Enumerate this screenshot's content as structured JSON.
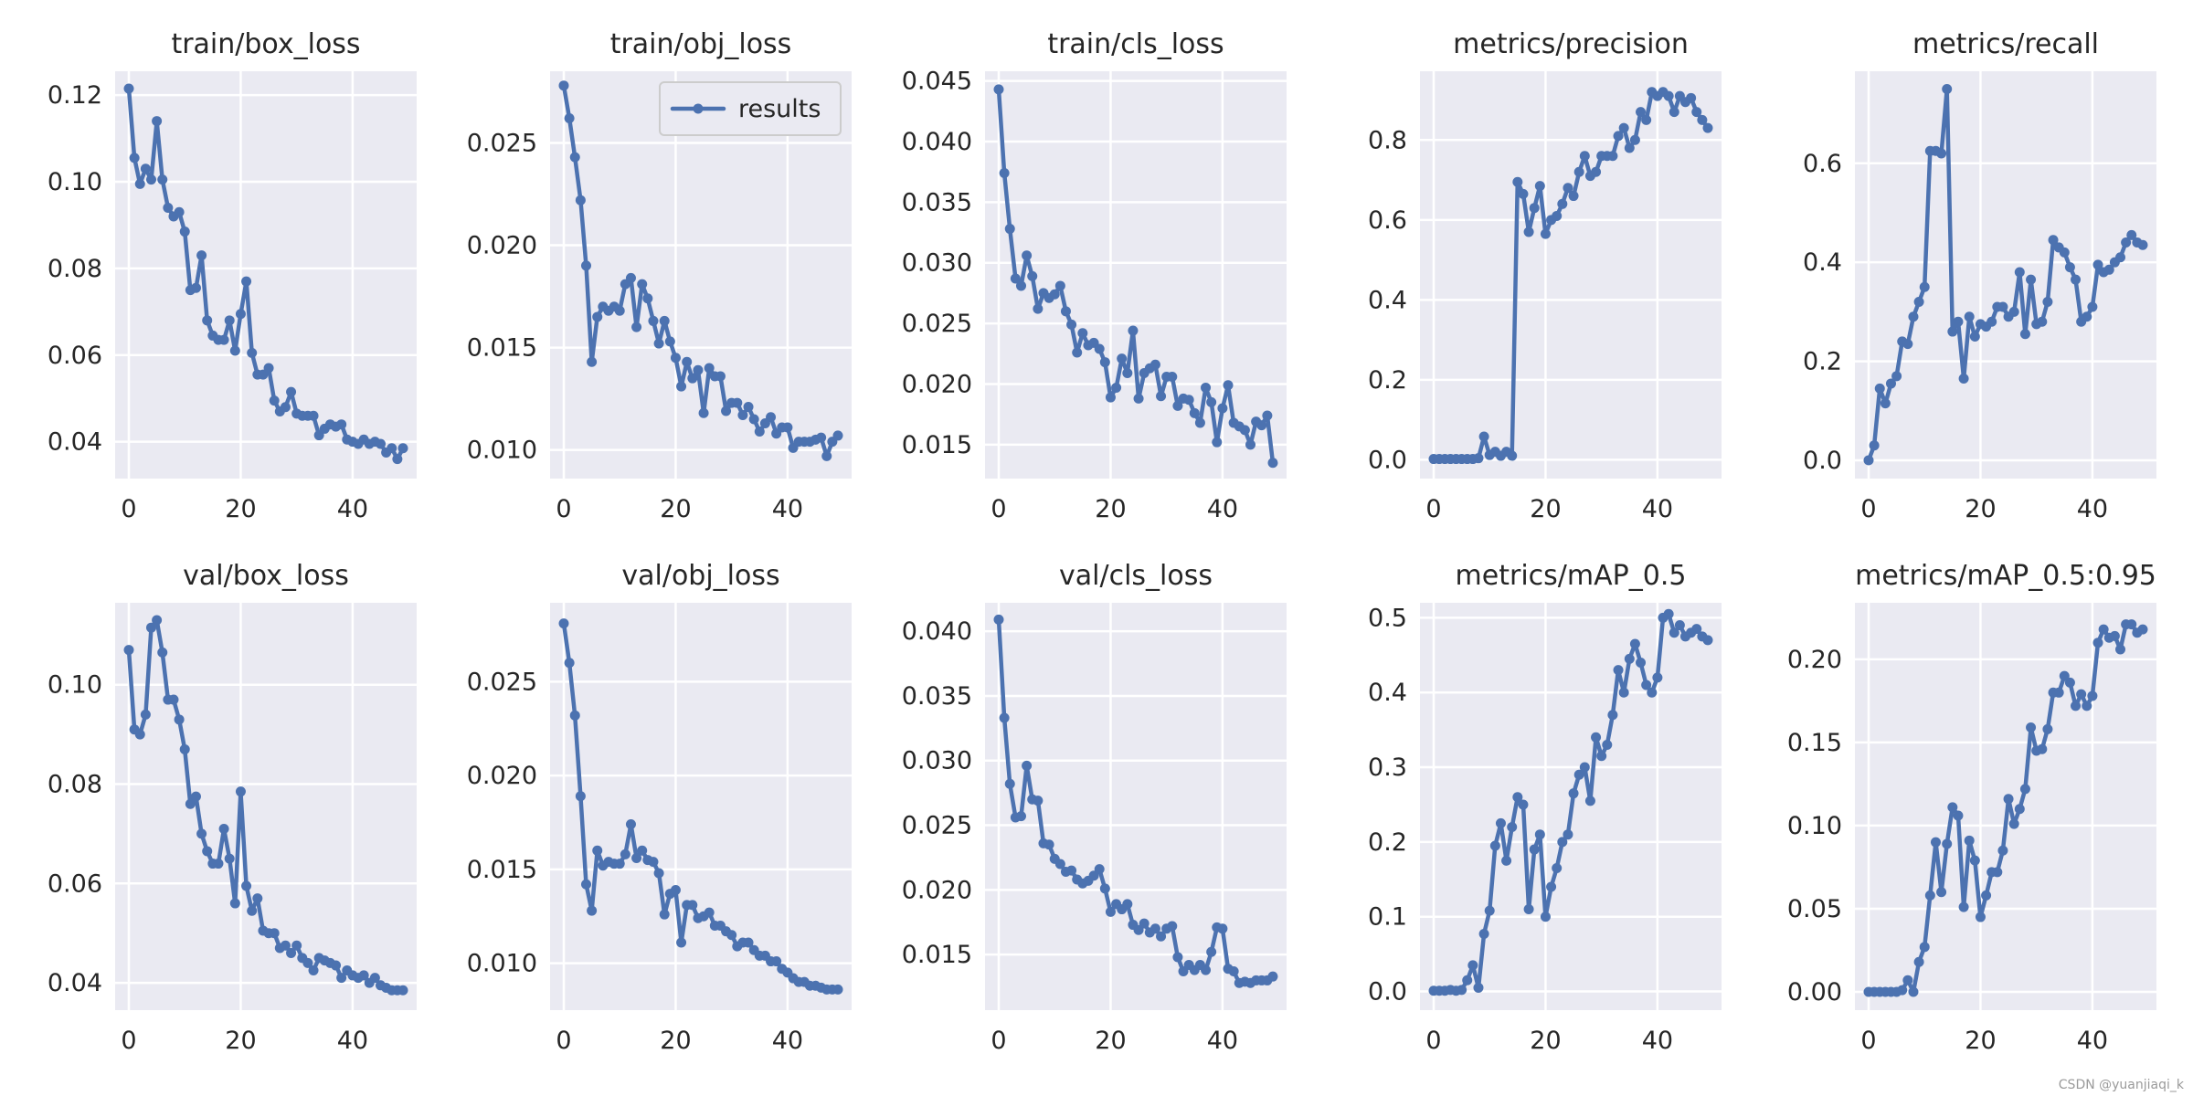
{
  "colors": {
    "series": "#4c72b0",
    "background": "#eaeaf2",
    "grid": "#ffffff",
    "text": "#262626"
  },
  "watermark": "CSDN @yuanjiaqi_k",
  "chart_data": [
    {
      "type": "line",
      "title": "train/box_loss",
      "xlim": [
        -2.45,
        51.45
      ],
      "ylim": [
        0.0315,
        0.1255
      ],
      "xticks": [
        0,
        20,
        40
      ],
      "xtick_labels": [
        "0",
        "20",
        "40"
      ],
      "yticks": [
        0.04,
        0.06,
        0.08,
        0.1,
        0.12
      ],
      "ytick_labels": [
        "0.04",
        "0.06",
        "0.08",
        "0.10",
        "0.12"
      ],
      "legend": null,
      "series": [
        {
          "name": "results",
          "values": [
            0.1215,
            0.1055,
            0.0995,
            0.103,
            0.1005,
            0.114,
            0.1005,
            0.094,
            0.092,
            0.093,
            0.0885,
            0.075,
            0.0755,
            0.083,
            0.068,
            0.0645,
            0.0635,
            0.0635,
            0.068,
            0.061,
            0.0695,
            0.077,
            0.0605,
            0.0555,
            0.0555,
            0.057,
            0.0495,
            0.047,
            0.048,
            0.0515,
            0.0465,
            0.046,
            0.046,
            0.046,
            0.0415,
            0.043,
            0.044,
            0.0435,
            0.044,
            0.0405,
            0.04,
            0.0395,
            0.0405,
            0.0395,
            0.04,
            0.0395,
            0.0375,
            0.0385,
            0.036,
            0.0385
          ]
        }
      ]
    },
    {
      "type": "line",
      "title": "train/obj_loss",
      "xlim": [
        -2.45,
        51.45
      ],
      "ylim": [
        0.0086,
        0.0285
      ],
      "xticks": [
        0,
        20,
        40
      ],
      "xtick_labels": [
        "0",
        "20",
        "40"
      ],
      "yticks": [
        0.01,
        0.015,
        0.02,
        0.025
      ],
      "ytick_labels": [
        "0.010",
        "0.015",
        "0.020",
        "0.025"
      ],
      "legend": {
        "label": "results",
        "position": "top-right"
      },
      "series": [
        {
          "name": "results",
          "values": [
            0.0278,
            0.0262,
            0.0243,
            0.0222,
            0.019,
            0.0143,
            0.0165,
            0.017,
            0.0168,
            0.017,
            0.0168,
            0.0181,
            0.0184,
            0.016,
            0.0181,
            0.0174,
            0.0163,
            0.0152,
            0.0163,
            0.0153,
            0.0145,
            0.0131,
            0.0143,
            0.0135,
            0.0139,
            0.0118,
            0.014,
            0.0136,
            0.0136,
            0.0119,
            0.0123,
            0.0123,
            0.0117,
            0.0121,
            0.0115,
            0.0109,
            0.0113,
            0.0116,
            0.0108,
            0.0111,
            0.0111,
            0.0101,
            0.0104,
            0.0104,
            0.0104,
            0.0105,
            0.0106,
            0.0097,
            0.0104,
            0.0107
          ]
        }
      ]
    },
    {
      "type": "line",
      "title": "train/cls_loss",
      "xlim": [
        -2.45,
        51.45
      ],
      "ylim": [
        0.0122,
        0.0458
      ],
      "xticks": [
        0,
        20,
        40
      ],
      "xtick_labels": [
        "0",
        "20",
        "40"
      ],
      "yticks": [
        0.015,
        0.02,
        0.025,
        0.03,
        0.035,
        0.04,
        0.045
      ],
      "ytick_labels": [
        "0.015",
        "0.020",
        "0.025",
        "0.030",
        "0.035",
        "0.040",
        "0.045"
      ],
      "legend": null,
      "series": [
        {
          "name": "results",
          "values": [
            0.0443,
            0.0374,
            0.0328,
            0.0287,
            0.0281,
            0.0306,
            0.0289,
            0.0262,
            0.0275,
            0.0271,
            0.0274,
            0.0281,
            0.026,
            0.0249,
            0.0226,
            0.0242,
            0.0232,
            0.0234,
            0.0229,
            0.0218,
            0.0189,
            0.0197,
            0.0221,
            0.0209,
            0.0244,
            0.0188,
            0.0209,
            0.0213,
            0.0216,
            0.019,
            0.0206,
            0.0206,
            0.0182,
            0.0188,
            0.0187,
            0.0176,
            0.0168,
            0.0197,
            0.0185,
            0.0152,
            0.018,
            0.0199,
            0.0168,
            0.0165,
            0.0162,
            0.015,
            0.0169,
            0.0166,
            0.0174,
            0.0135
          ]
        }
      ]
    },
    {
      "type": "line",
      "title": "metrics/precision",
      "xlim": [
        -2.45,
        51.45
      ],
      "ylim": [
        -0.047,
        0.972
      ],
      "xticks": [
        0,
        20,
        40
      ],
      "xtick_labels": [
        "0",
        "20",
        "40"
      ],
      "yticks": [
        0,
        0.2,
        0.4,
        0.6,
        0.8
      ],
      "ytick_labels": [
        "0.0",
        "0.2",
        "0.4",
        "0.6",
        "0.8"
      ],
      "legend": null,
      "series": [
        {
          "name": "results",
          "values": [
            0.002,
            0.002,
            0.002,
            0.002,
            0.002,
            0.002,
            0.002,
            0.002,
            0.004,
            0.058,
            0.012,
            0.02,
            0.01,
            0.02,
            0.01,
            0.695,
            0.665,
            0.57,
            0.63,
            0.685,
            0.565,
            0.6,
            0.61,
            0.64,
            0.68,
            0.66,
            0.72,
            0.76,
            0.71,
            0.72,
            0.76,
            0.76,
            0.76,
            0.81,
            0.83,
            0.78,
            0.8,
            0.87,
            0.85,
            0.92,
            0.91,
            0.92,
            0.91,
            0.87,
            0.91,
            0.895,
            0.905,
            0.87,
            0.85,
            0.83
          ]
        }
      ]
    },
    {
      "type": "line",
      "title": "metrics/recall",
      "xlim": [
        -2.45,
        51.45
      ],
      "ylim": [
        -0.037,
        0.786
      ],
      "xticks": [
        0,
        20,
        40
      ],
      "xtick_labels": [
        "0",
        "20",
        "40"
      ],
      "yticks": [
        0,
        0.2,
        0.4,
        0.6
      ],
      "ytick_labels": [
        "0.0",
        "0.2",
        "0.4",
        "0.6"
      ],
      "legend": null,
      "series": [
        {
          "name": "results",
          "values": [
            0.0,
            0.03,
            0.145,
            0.115,
            0.155,
            0.17,
            0.24,
            0.235,
            0.29,
            0.32,
            0.35,
            0.625,
            0.625,
            0.62,
            0.75,
            0.26,
            0.28,
            0.165,
            0.29,
            0.25,
            0.275,
            0.27,
            0.28,
            0.31,
            0.31,
            0.29,
            0.3,
            0.38,
            0.255,
            0.365,
            0.275,
            0.28,
            0.32,
            0.445,
            0.43,
            0.42,
            0.39,
            0.365,
            0.28,
            0.29,
            0.31,
            0.395,
            0.38,
            0.385,
            0.4,
            0.41,
            0.44,
            0.455,
            0.44,
            0.435
          ]
        }
      ]
    },
    {
      "type": "line",
      "title": "val/box_loss",
      "xlim": [
        -2.45,
        51.45
      ],
      "ylim": [
        0.0345,
        0.1165
      ],
      "xticks": [
        0,
        20,
        40
      ],
      "xtick_labels": [
        "0",
        "20",
        "40"
      ],
      "yticks": [
        0.04,
        0.06,
        0.08,
        0.1
      ],
      "ytick_labels": [
        "0.04",
        "0.06",
        "0.08",
        "0.10"
      ],
      "legend": null,
      "series": [
        {
          "name": "results",
          "values": [
            0.107,
            0.091,
            0.09,
            0.094,
            0.1115,
            0.113,
            0.1065,
            0.097,
            0.097,
            0.093,
            0.087,
            0.076,
            0.0775,
            0.07,
            0.0665,
            0.064,
            0.064,
            0.071,
            0.065,
            0.056,
            0.0785,
            0.0595,
            0.0545,
            0.057,
            0.0505,
            0.05,
            0.05,
            0.047,
            0.0475,
            0.046,
            0.0475,
            0.045,
            0.044,
            0.0425,
            0.045,
            0.0445,
            0.044,
            0.0435,
            0.041,
            0.0425,
            0.0415,
            0.041,
            0.0415,
            0.04,
            0.041,
            0.0395,
            0.039,
            0.0385,
            0.0385,
            0.0385
          ]
        }
      ]
    },
    {
      "type": "line",
      "title": "val/obj_loss",
      "xlim": [
        -2.45,
        51.45
      ],
      "ylim": [
        0.0075,
        0.0292
      ],
      "xticks": [
        0,
        20,
        40
      ],
      "xtick_labels": [
        "0",
        "20",
        "40"
      ],
      "yticks": [
        0.01,
        0.015,
        0.02,
        0.025
      ],
      "ytick_labels": [
        "0.010",
        "0.015",
        "0.020",
        "0.025"
      ],
      "legend": null,
      "series": [
        {
          "name": "results",
          "values": [
            0.0281,
            0.026,
            0.0232,
            0.0189,
            0.0142,
            0.0128,
            0.016,
            0.0152,
            0.0154,
            0.0153,
            0.0153,
            0.0158,
            0.0174,
            0.0156,
            0.016,
            0.0155,
            0.0154,
            0.0148,
            0.0126,
            0.0137,
            0.0139,
            0.0111,
            0.0131,
            0.0131,
            0.0124,
            0.0125,
            0.0127,
            0.012,
            0.012,
            0.0117,
            0.0115,
            0.0109,
            0.0111,
            0.0111,
            0.0107,
            0.0104,
            0.0104,
            0.0101,
            0.0101,
            0.0097,
            0.0095,
            0.0092,
            0.009,
            0.009,
            0.0088,
            0.0088,
            0.0087,
            0.0086,
            0.0086,
            0.0086
          ]
        }
      ]
    },
    {
      "type": "line",
      "title": "val/cls_loss",
      "xlim": [
        -2.45,
        51.45
      ],
      "ylim": [
        0.0107,
        0.0422
      ],
      "xticks": [
        0,
        20,
        40
      ],
      "xtick_labels": [
        "0",
        "20",
        "40"
      ],
      "yticks": [
        0.015,
        0.02,
        0.025,
        0.03,
        0.035,
        0.04
      ],
      "ytick_labels": [
        "0.015",
        "0.020",
        "0.025",
        "0.030",
        "0.035",
        "0.040"
      ],
      "legend": null,
      "series": [
        {
          "name": "results",
          "values": [
            0.0409,
            0.0333,
            0.0282,
            0.0256,
            0.0257,
            0.0296,
            0.027,
            0.0269,
            0.0236,
            0.0235,
            0.0224,
            0.022,
            0.0214,
            0.0215,
            0.0208,
            0.0205,
            0.0207,
            0.0211,
            0.0216,
            0.0201,
            0.0183,
            0.0189,
            0.0185,
            0.0189,
            0.0173,
            0.0169,
            0.0174,
            0.0167,
            0.017,
            0.0164,
            0.017,
            0.0172,
            0.0148,
            0.0137,
            0.0142,
            0.0138,
            0.0142,
            0.0138,
            0.0152,
            0.0171,
            0.017,
            0.0139,
            0.0137,
            0.0128,
            0.0129,
            0.0128,
            0.013,
            0.013,
            0.013,
            0.0133
          ]
        }
      ]
    },
    {
      "type": "line",
      "title": "metrics/mAP_0.5",
      "xlim": [
        -2.45,
        51.45
      ],
      "ylim": [
        -0.025,
        0.52
      ],
      "xticks": [
        0,
        20,
        40
      ],
      "xtick_labels": [
        "0",
        "20",
        "40"
      ],
      "yticks": [
        0,
        0.1,
        0.2,
        0.3,
        0.4,
        0.5
      ],
      "ytick_labels": [
        "0.0",
        "0.1",
        "0.2",
        "0.3",
        "0.4",
        "0.5"
      ],
      "legend": null,
      "series": [
        {
          "name": "results",
          "values": [
            0.001,
            0.001,
            0.001,
            0.002,
            0.001,
            0.002,
            0.015,
            0.035,
            0.005,
            0.077,
            0.108,
            0.195,
            0.225,
            0.175,
            0.22,
            0.26,
            0.25,
            0.11,
            0.19,
            0.21,
            0.1,
            0.14,
            0.165,
            0.2,
            0.21,
            0.265,
            0.29,
            0.3,
            0.255,
            0.34,
            0.315,
            0.33,
            0.37,
            0.43,
            0.4,
            0.445,
            0.465,
            0.44,
            0.41,
            0.4,
            0.42,
            0.5,
            0.505,
            0.48,
            0.49,
            0.475,
            0.48,
            0.485,
            0.475,
            0.47
          ]
        }
      ]
    },
    {
      "type": "line",
      "title": "metrics/mAP_0.5:0.95",
      "xlim": [
        -2.45,
        51.45
      ],
      "ylim": [
        -0.011,
        0.234
      ],
      "xticks": [
        0,
        20,
        40
      ],
      "xtick_labels": [
        "0",
        "20",
        "40"
      ],
      "yticks": [
        0,
        0.05,
        0.1,
        0.15,
        0.2
      ],
      "ytick_labels": [
        "0.00",
        "0.05",
        "0.10",
        "0.15",
        "0.20"
      ],
      "legend": null,
      "series": [
        {
          "name": "results",
          "values": [
            0.0,
            0.0,
            0.0,
            0.0,
            0.0,
            0.0,
            0.001,
            0.007,
            0.0,
            0.018,
            0.027,
            0.058,
            0.09,
            0.06,
            0.089,
            0.111,
            0.106,
            0.051,
            0.091,
            0.079,
            0.045,
            0.058,
            0.072,
            0.072,
            0.085,
            0.116,
            0.101,
            0.11,
            0.122,
            0.159,
            0.145,
            0.146,
            0.158,
            0.18,
            0.18,
            0.19,
            0.186,
            0.172,
            0.179,
            0.172,
            0.178,
            0.21,
            0.218,
            0.213,
            0.214,
            0.206,
            0.221,
            0.221,
            0.216,
            0.218
          ]
        }
      ]
    }
  ]
}
